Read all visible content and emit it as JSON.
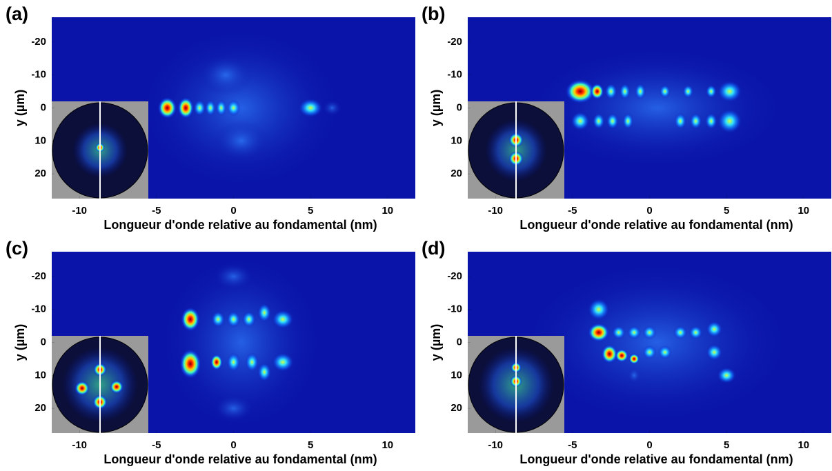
{
  "chart_data": [
    {
      "type": "heatmap",
      "panel_label": "(a)",
      "xlabel": "Longueur d'onde relative au fondamental (nm)",
      "ylabel": "y (µm)",
      "xlim": [
        -11.8,
        11.8
      ],
      "ylim": [
        -27.5,
        27.5
      ],
      "xticks": [
        -10,
        -5,
        0,
        5,
        10
      ],
      "yticks": [
        -20,
        -10,
        0,
        10,
        20
      ],
      "background": "#0a14a8"
    },
    {
      "type": "heatmap",
      "panel_label": "(b)",
      "xlabel": "Longueur d'onde relative au fondamental (nm)",
      "ylabel": "y (µm)",
      "xlim": [
        -11.8,
        11.8
      ],
      "ylim": [
        -27.5,
        27.5
      ],
      "xticks": [
        -10,
        -5,
        0,
        5,
        10
      ],
      "yticks": [
        -20,
        -10,
        0,
        10,
        20
      ],
      "background": "#0a14a8"
    },
    {
      "type": "heatmap",
      "panel_label": "(c)",
      "xlabel": "Longueur d'onde relative au fondamental (nm)",
      "ylabel": "y (µm)",
      "xlim": [
        -11.8,
        11.8
      ],
      "ylim": [
        -27.5,
        27.5
      ],
      "xticks": [
        -10,
        -5,
        0,
        5,
        10
      ],
      "yticks": [
        -20,
        -10,
        0,
        10,
        20
      ],
      "background": "#0a14a8"
    },
    {
      "type": "heatmap",
      "panel_label": "(d)",
      "xlabel": "Longueur d'onde relative au fondamental (nm)",
      "ylabel": "y (µm)",
      "xlim": [
        -11.8,
        11.8
      ],
      "ylim": [
        -27.5,
        27.5
      ],
      "xticks": [
        -10,
        -5,
        0,
        5,
        10
      ],
      "yticks": [
        -20,
        -10,
        0,
        10,
        20
      ],
      "background": "#0a14a8"
    }
  ]
}
